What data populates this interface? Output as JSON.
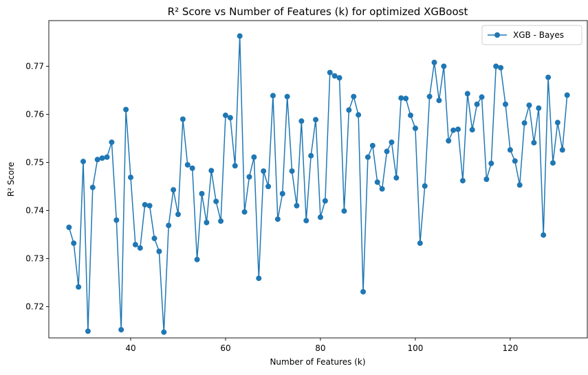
{
  "chart_data": {
    "type": "line",
    "title": "R² Score vs Number of Features (k) for optimized XGBoost",
    "xlabel": "Number of Features (k)",
    "ylabel": "R² Score",
    "xlim": [
      22.75,
      136.25
    ],
    "ylim": [
      0.7135,
      0.7795
    ],
    "xticks": [
      40,
      60,
      80,
      100,
      120
    ],
    "yticks": [
      0.72,
      0.73,
      0.74,
      0.75,
      0.76,
      0.77
    ],
    "xtick_labels": [
      "40",
      "60",
      "80",
      "100",
      "120"
    ],
    "ytick_labels": [
      "0.72",
      "0.73",
      "0.74",
      "0.75",
      "0.76",
      "0.77"
    ],
    "grid": false,
    "legend_position": "top-right",
    "color": "#1f77b4",
    "series": [
      {
        "name": "XGB - Bayes",
        "x": [
          27,
          28,
          29,
          30,
          31,
          32,
          33,
          34,
          35,
          36,
          37,
          38,
          39,
          40,
          41,
          42,
          43,
          44,
          45,
          46,
          47,
          48,
          49,
          50,
          51,
          52,
          53,
          54,
          55,
          56,
          57,
          58,
          59,
          60,
          61,
          62,
          63,
          64,
          65,
          66,
          67,
          68,
          69,
          70,
          71,
          72,
          73,
          74,
          75,
          76,
          77,
          78,
          79,
          80,
          81,
          82,
          83,
          84,
          85,
          86,
          87,
          88,
          89,
          90,
          91,
          92,
          93,
          94,
          95,
          96,
          97,
          98,
          99,
          100,
          101,
          102,
          103,
          104,
          105,
          106,
          107,
          108,
          109,
          110,
          111,
          112,
          113,
          114,
          115,
          116,
          117,
          118,
          119,
          120,
          121,
          122,
          123,
          124,
          125,
          126,
          127,
          128,
          129,
          130,
          131,
          132
        ],
        "y": [
          0.7365,
          0.7332,
          0.7241,
          0.7502,
          0.7149,
          0.7448,
          0.7506,
          0.7509,
          0.7511,
          0.7542,
          0.738,
          0.7152,
          0.761,
          0.7469,
          0.7329,
          0.7322,
          0.7412,
          0.741,
          0.7342,
          0.7315,
          0.7147,
          0.7369,
          0.7443,
          0.7392,
          0.759,
          0.7495,
          0.7488,
          0.7298,
          0.7435,
          0.7375,
          0.7483,
          0.7419,
          0.7378,
          0.7598,
          0.7593,
          0.7493,
          0.7763,
          0.7397,
          0.747,
          0.7511,
          0.7259,
          0.7482,
          0.745,
          0.7639,
          0.7382,
          0.7435,
          0.7637,
          0.7482,
          0.741,
          0.7586,
          0.7379,
          0.7514,
          0.7589,
          0.7386,
          0.742,
          0.7687,
          0.768,
          0.7676,
          0.7399,
          0.7609,
          0.7637,
          0.7599,
          0.7231,
          0.7511,
          0.7535,
          0.7459,
          0.7445,
          0.7523,
          0.7542,
          0.7468,
          0.7634,
          0.7633,
          0.7598,
          0.7571,
          0.7332,
          0.7451,
          0.7637,
          0.7708,
          0.7629,
          0.77,
          0.7545,
          0.7567,
          0.7569,
          0.7462,
          0.7643,
          0.7568,
          0.7621,
          0.7636,
          0.7465,
          0.7498,
          0.77,
          0.7697,
          0.7621,
          0.7526,
          0.7503,
          0.7453,
          0.7582,
          0.7619,
          0.7541,
          0.7613,
          0.7349,
          0.7677,
          0.7499,
          0.7583,
          0.7526,
          0.764
        ]
      }
    ]
  }
}
